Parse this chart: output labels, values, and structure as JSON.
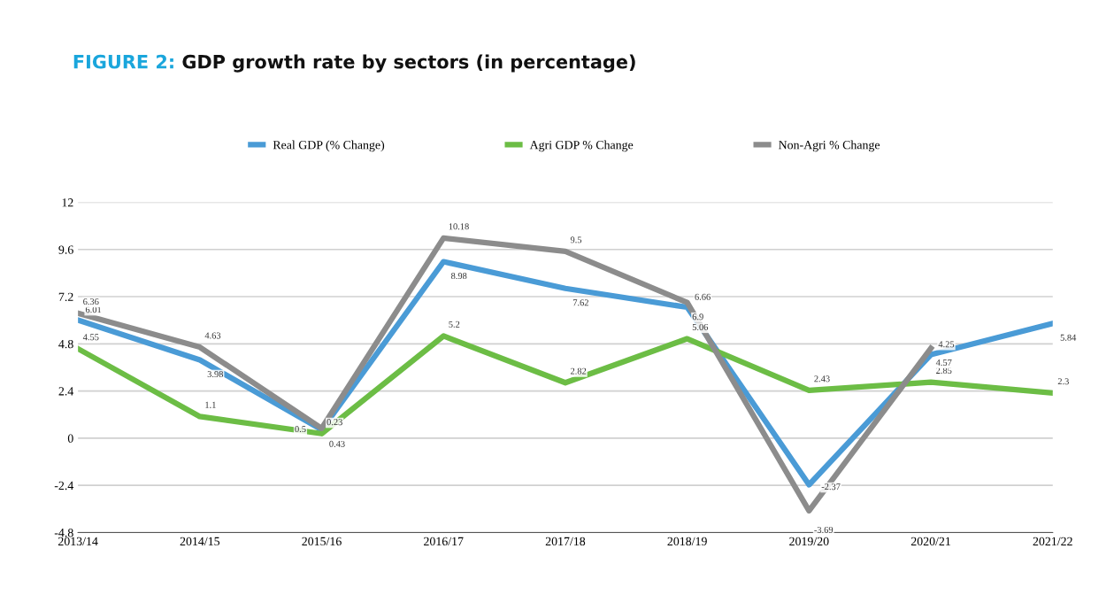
{
  "chart_data": {
    "type": "line",
    "title": "FIGURE 2: GDP growth rate by sectors (in percentage)",
    "categories": [
      "2013/14",
      "2014/15",
      "2015/16",
      "2016/17",
      "2017/18",
      "2018/19",
      "2019/20",
      "2020/21",
      "2021/22"
    ],
    "series": [
      {
        "name": "Real GDP (% Change)",
        "color": "#4a9bd6",
        "values": [
          6.01,
          3.98,
          0.43,
          8.98,
          7.62,
          6.66,
          -2.37,
          4.25,
          5.84
        ]
      },
      {
        "name": "Agri GDP % Change",
        "color": "#6cbd45",
        "values": [
          4.55,
          1.1,
          0.23,
          5.2,
          2.82,
          5.06,
          2.43,
          2.85,
          2.3
        ]
      },
      {
        "name": "Non-Agri % Change",
        "color": "#8c8c8c",
        "values": [
          6.36,
          4.63,
          0.5,
          10.18,
          9.5,
          6.9,
          -3.69,
          4.57,
          null
        ]
      }
    ],
    "ylim": [
      -4.8,
      12
    ],
    "yticks": [
      -4.8,
      -2.4,
      0,
      2.4,
      4.8,
      7.2,
      9.6,
      12
    ],
    "grid": "y",
    "legend": "top",
    "data_labels": true,
    "marker": "none",
    "line_style": "solid"
  }
}
